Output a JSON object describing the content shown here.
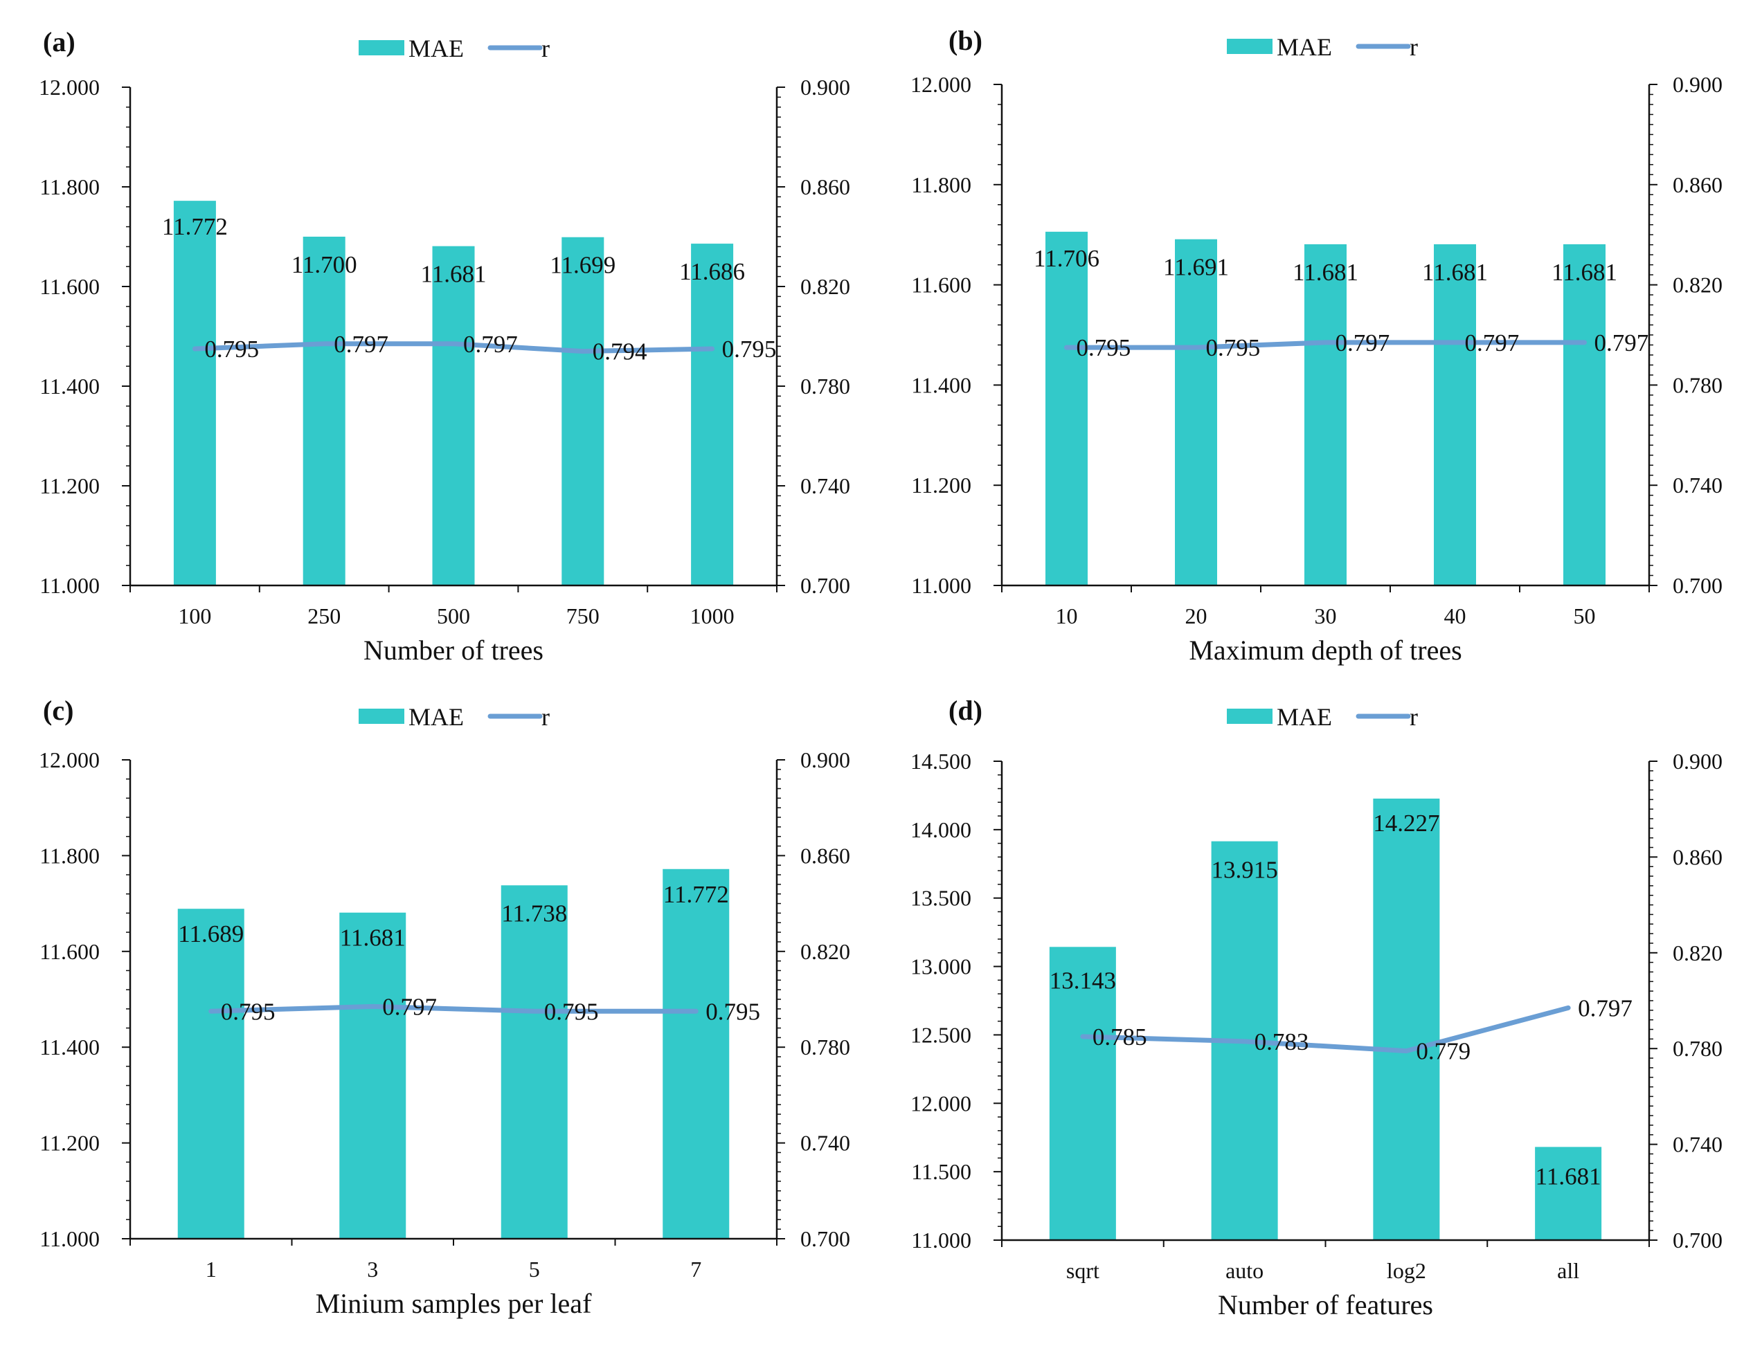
{
  "colors": {
    "bar": "#33C9C9",
    "line": "#6A9ED4",
    "axis": "#111111"
  },
  "legend": {
    "bar": "MAE",
    "line": "r"
  },
  "chart_data": [
    {
      "type": "bar",
      "panel": "(a)",
      "xlabel": "Number of trees",
      "categories": [
        "100",
        "250",
        "500",
        "750",
        "1000"
      ],
      "series": [
        {
          "name": "MAE",
          "type": "bar",
          "axis": "left",
          "values": [
            11.772,
            11.7,
            11.681,
            11.699,
            11.686
          ],
          "labels": [
            "11.772",
            "11.700",
            "11.681",
            "11.699",
            "11.686"
          ]
        },
        {
          "name": "r",
          "type": "line",
          "axis": "right",
          "values": [
            0.795,
            0.797,
            0.797,
            0.794,
            0.795
          ],
          "labels": [
            "0.795",
            "0.797",
            "0.797",
            "0.794",
            "0.795"
          ]
        }
      ],
      "y_left": {
        "min": 11.0,
        "max": 12.0,
        "ticks": [
          "11.000",
          "11.200",
          "11.400",
          "11.600",
          "11.800",
          "12.000"
        ]
      },
      "y_right": {
        "min": 0.7,
        "max": 0.9,
        "ticks": [
          "0.700",
          "0.740",
          "0.780",
          "0.820",
          "0.860",
          "0.900"
        ]
      }
    },
    {
      "type": "bar",
      "panel": "(b)",
      "xlabel": "Maximum  depth of trees",
      "categories": [
        "10",
        "20",
        "30",
        "40",
        "50"
      ],
      "series": [
        {
          "name": "MAE",
          "type": "bar",
          "axis": "left",
          "values": [
            11.706,
            11.691,
            11.681,
            11.681,
            11.681
          ],
          "labels": [
            "11.706",
            "11.691",
            "11.681",
            "11.681",
            "11.681"
          ]
        },
        {
          "name": "r",
          "type": "line",
          "axis": "right",
          "values": [
            0.795,
            0.795,
            0.797,
            0.797,
            0.797
          ],
          "labels": [
            "0.795",
            "0.795",
            "0.797",
            "0.797",
            "0.797"
          ]
        }
      ],
      "y_left": {
        "min": 11.0,
        "max": 12.0,
        "ticks": [
          "11.000",
          "11.200",
          "11.400",
          "11.600",
          "11.800",
          "12.000"
        ]
      },
      "y_right": {
        "min": 0.7,
        "max": 0.9,
        "ticks": [
          "0.700",
          "0.740",
          "0.780",
          "0.820",
          "0.860",
          "0.900"
        ]
      }
    },
    {
      "type": "bar",
      "panel": "(c)",
      "xlabel": "Minium  samples per leaf",
      "categories": [
        "1",
        "3",
        "5",
        "7"
      ],
      "series": [
        {
          "name": "MAE",
          "type": "bar",
          "axis": "left",
          "values": [
            11.689,
            11.681,
            11.738,
            11.772
          ],
          "labels": [
            "11.689",
            "11.681",
            "11.738",
            "11.772"
          ]
        },
        {
          "name": "r",
          "type": "line",
          "axis": "right",
          "values": [
            0.795,
            0.797,
            0.795,
            0.795
          ],
          "labels": [
            "0.795",
            "0.797",
            "0.795",
            "0.795"
          ]
        }
      ],
      "y_left": {
        "min": 11.0,
        "max": 12.0,
        "ticks": [
          "11.000",
          "11.200",
          "11.400",
          "11.600",
          "11.800",
          "12.000"
        ]
      },
      "y_right": {
        "min": 0.7,
        "max": 0.9,
        "ticks": [
          "0.700",
          "0.740",
          "0.780",
          "0.820",
          "0.860",
          "0.900"
        ]
      }
    },
    {
      "type": "bar",
      "panel": "(d)",
      "xlabel": "Number of features",
      "categories": [
        "sqrt",
        "auto",
        "log2",
        "all"
      ],
      "series": [
        {
          "name": "MAE",
          "type": "bar",
          "axis": "left",
          "values": [
            13.143,
            13.915,
            14.227,
            11.681
          ],
          "labels": [
            "13.143",
            "13.915",
            "14.227",
            "11.681"
          ]
        },
        {
          "name": "r",
          "type": "line",
          "axis": "right",
          "values": [
            0.785,
            0.783,
            0.779,
            0.797
          ],
          "labels": [
            "0.785",
            "0.783",
            "0.779",
            "0.797"
          ]
        }
      ],
      "y_left": {
        "min": 11.0,
        "max": 14.5,
        "ticks": [
          "11.000",
          "11.500",
          "12.000",
          "12.500",
          "13.000",
          "13.500",
          "14.000",
          "14.500"
        ]
      },
      "y_right": {
        "min": 0.7,
        "max": 0.9,
        "ticks": [
          "0.700",
          "0.740",
          "0.780",
          "0.820",
          "0.860",
          "0.900"
        ]
      }
    }
  ]
}
